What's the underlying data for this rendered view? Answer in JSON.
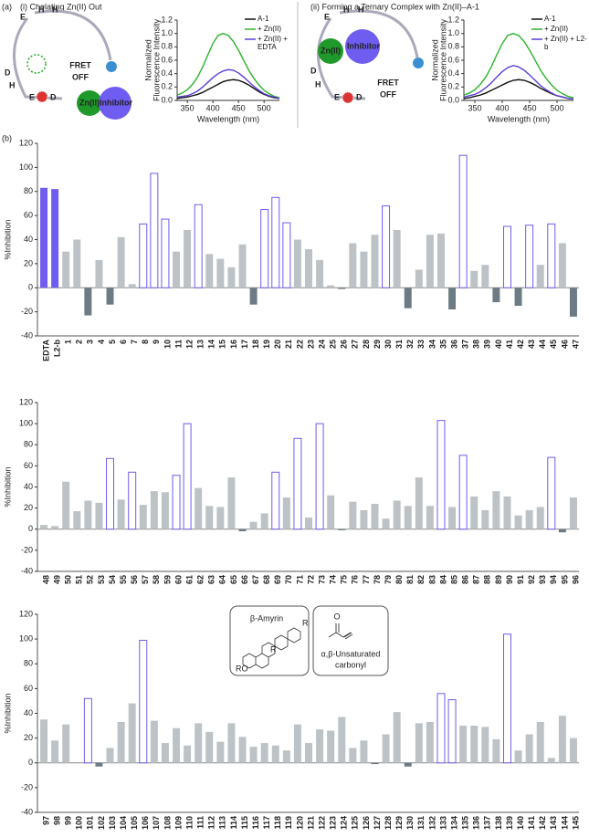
{
  "panel_a": {
    "label": "(a)",
    "i": {
      "title": "(i) Chelating Zn(II) Out",
      "residues": [
        "E",
        "H",
        "H",
        "D",
        "H",
        "E",
        "D"
      ],
      "fret": [
        "FRET",
        "OFF"
      ],
      "zn": "Zn(II)",
      "inhibitor": "Inhibitor"
    },
    "ii": {
      "title": "(ii) Forming a Ternary Complex with Zn(II)–A-1",
      "residues": [
        "E",
        "H",
        "H",
        "D",
        "H",
        "E",
        "D"
      ],
      "fret": [
        "FRET",
        "OFF"
      ],
      "zn": "Zn(II)",
      "inhibitor": "Inhibitor"
    }
  },
  "panel_b": {
    "label": "(b)"
  },
  "chart_data": [
    {
      "type": "line",
      "xlabel": "Wavelength (nm)",
      "ylabel": [
        "Normalized",
        "Fluorescence Intensity"
      ],
      "x": [
        330,
        340,
        350,
        360,
        370,
        380,
        390,
        400,
        410,
        420,
        430,
        440,
        450,
        460,
        470,
        480,
        490,
        500,
        510,
        520,
        530
      ],
      "xlim": [
        330,
        530
      ],
      "xticks": [
        350,
        400,
        450,
        500
      ],
      "ylim": [
        0,
        1.2
      ],
      "yticks": [
        {
          "value": 0,
          "label": "0.0"
        },
        0.2,
        0.4,
        0.6,
        0.8,
        {
          "value": 1,
          "label": "1.0"
        },
        1.2
      ],
      "series": [
        {
          "name": "A-1",
          "color": "#111111",
          "values": [
            0.03,
            0.04,
            0.05,
            0.07,
            0.09,
            0.12,
            0.16,
            0.2,
            0.24,
            0.28,
            0.3,
            0.31,
            0.3,
            0.27,
            0.23,
            0.18,
            0.13,
            0.09,
            0.06,
            0.04,
            0.03
          ]
        },
        {
          "name": "+ Zn(II)",
          "color": "#2db42d",
          "values": [
            0.08,
            0.11,
            0.16,
            0.24,
            0.35,
            0.5,
            0.68,
            0.85,
            0.97,
            1.0,
            0.97,
            0.88,
            0.75,
            0.6,
            0.45,
            0.33,
            0.23,
            0.15,
            0.1,
            0.06,
            0.04
          ]
        },
        {
          "name": "+ Zn(II) + EDTA",
          "color": "#5b3fd6",
          "values": [
            0.05,
            0.06,
            0.07,
            0.1,
            0.14,
            0.2,
            0.27,
            0.34,
            0.4,
            0.44,
            0.46,
            0.45,
            0.41,
            0.35,
            0.28,
            0.21,
            0.15,
            0.1,
            0.07,
            0.05,
            0.03
          ]
        }
      ]
    },
    {
      "type": "line",
      "xlabel": "Wavelength (nm)",
      "ylabel": [
        "Normalized",
        "Fluorescence Intensity"
      ],
      "x": [
        330,
        340,
        350,
        360,
        370,
        380,
        390,
        400,
        410,
        420,
        430,
        440,
        450,
        460,
        470,
        480,
        490,
        500,
        510,
        520,
        530
      ],
      "xlim": [
        330,
        530
      ],
      "xticks": [
        350,
        400,
        450,
        500
      ],
      "ylim": [
        0,
        1.2
      ],
      "yticks": [
        {
          "value": 0,
          "label": "0.0"
        },
        0.2,
        0.4,
        0.6,
        0.8,
        {
          "value": 1,
          "label": "1.0"
        },
        1.2
      ],
      "series": [
        {
          "name": "A-1",
          "color": "#111111",
          "values": [
            0.03,
            0.04,
            0.06,
            0.08,
            0.11,
            0.15,
            0.19,
            0.23,
            0.27,
            0.3,
            0.31,
            0.3,
            0.27,
            0.23,
            0.18,
            0.14,
            0.1,
            0.07,
            0.05,
            0.03,
            0.02
          ]
        },
        {
          "name": "+ Zn(II)",
          "color": "#2db42d",
          "values": [
            0.08,
            0.11,
            0.16,
            0.24,
            0.35,
            0.5,
            0.68,
            0.85,
            0.97,
            1.0,
            0.97,
            0.88,
            0.75,
            0.6,
            0.45,
            0.33,
            0.23,
            0.15,
            0.1,
            0.06,
            0.04
          ]
        },
        {
          "name": "+ Zn(II) + L2-b",
          "color": "#5b3fd6",
          "values": [
            0.05,
            0.07,
            0.09,
            0.13,
            0.19,
            0.26,
            0.35,
            0.43,
            0.49,
            0.52,
            0.5,
            0.45,
            0.38,
            0.3,
            0.22,
            0.16,
            0.11,
            0.07,
            0.05,
            0.03,
            0.02
          ]
        }
      ]
    },
    {
      "type": "bar",
      "ylabel": "%Inhibition",
      "ylim": [
        -40,
        120
      ],
      "yticks": [
        -40,
        -20,
        0,
        20,
        40,
        60,
        80,
        100,
        120
      ],
      "style_colors": {
        "solid": "#6f5cf0",
        "outline": "#6f5cf0",
        "plain": "#bcc2c5"
      },
      "negative_color": "#6d7c84",
      "categories": [
        "EDTA",
        "L2-b",
        "1",
        "2",
        "3",
        "4",
        "5",
        "6",
        "7",
        "8",
        "9",
        "10",
        "11",
        "12",
        "13",
        "14",
        "15",
        "16",
        "17",
        "18",
        "19",
        "20",
        "21",
        "22",
        "23",
        "24",
        "25",
        "26",
        "27",
        "28",
        "29",
        "30",
        "31",
        "32",
        "33",
        "34",
        "35",
        "36",
        "37",
        "38",
        "39",
        "40",
        "41",
        "42",
        "43",
        "44",
        "45",
        "46",
        "47"
      ],
      "values": [
        83,
        82,
        30,
        40,
        -23,
        23,
        -14,
        42,
        3,
        53,
        95,
        57,
        30,
        48,
        69,
        28,
        24,
        17,
        36,
        -14,
        65,
        75,
        54,
        40,
        32,
        23,
        2,
        -1,
        37,
        30,
        44,
        68,
        48,
        -17,
        15,
        44,
        45,
        -18,
        110,
        14,
        19,
        -12,
        51,
        -15,
        52,
        19,
        53,
        37,
        -24
      ],
      "bar_styles": [
        "solid",
        "solid",
        "plain",
        "plain",
        "plain",
        "plain",
        "plain",
        "plain",
        "plain",
        "outline",
        "outline",
        "outline",
        "plain",
        "plain",
        "outline",
        "plain",
        "plain",
        "plain",
        "plain",
        "plain",
        "outline",
        "outline",
        "outline",
        "plain",
        "plain",
        "plain",
        "plain",
        "plain",
        "plain",
        "plain",
        "plain",
        "outline",
        "plain",
        "plain",
        "plain",
        "plain",
        "plain",
        "plain",
        "outline",
        "plain",
        "plain",
        "plain",
        "outline",
        "plain",
        "outline",
        "plain",
        "outline",
        "plain",
        "plain"
      ]
    },
    {
      "type": "bar",
      "ylabel": "%Inhibition",
      "ylim": [
        -40,
        120
      ],
      "yticks": [
        -40,
        -20,
        0,
        20,
        40,
        60,
        80,
        100,
        120
      ],
      "style_colors": {
        "solid": "#6f5cf0",
        "outline": "#6f5cf0",
        "plain": "#bcc2c5"
      },
      "negative_color": "#6d7c84",
      "highlight_color": "#2a86b4",
      "categories": [
        "48",
        "49",
        "50",
        "51",
        "52",
        "53",
        "54",
        "55",
        "56",
        "57",
        "58",
        "59",
        "60",
        "61",
        "62",
        "63",
        "64",
        "65",
        "66",
        "67",
        "68",
        "69",
        "70",
        "71",
        "72",
        "73",
        "74",
        "75",
        "76",
        "77",
        "78",
        "79",
        "80",
        "81",
        "82",
        "83",
        "84",
        "85",
        "86",
        "87",
        "88",
        "89",
        "90",
        "91",
        "92",
        "93",
        "94",
        "95",
        "96"
      ],
      "values": [
        4,
        3,
        45,
        17,
        27,
        25,
        67,
        28,
        54,
        23,
        36,
        35,
        51,
        100,
        39,
        22,
        21,
        49,
        -2,
        7,
        15,
        54,
        30,
        86,
        11,
        100,
        32,
        -1,
        26,
        18,
        24,
        10,
        27,
        22,
        49,
        22,
        103,
        21,
        70,
        31,
        18,
        36,
        31,
        13,
        18,
        21,
        68,
        -3,
        30
      ],
      "bar_styles": [
        "plain",
        "plain",
        "plain",
        "plain",
        "plain",
        "plain",
        "outline",
        "plain",
        "outline",
        "plain",
        "plain",
        "plain",
        "outline",
        "outline",
        "plain",
        "plain",
        "plain",
        "plain",
        "plain",
        "plain",
        "plain",
        "outline",
        "plain",
        "outline",
        "plain",
        "outline",
        "plain",
        "plain",
        "plain",
        "plain",
        "plain",
        "plain",
        "plain",
        "plain",
        "plain",
        "plain",
        "outline",
        "plain",
        "outline",
        "plain",
        "plain",
        "plain",
        "plain",
        "plain",
        "plain",
        "plain",
        "outline",
        "plain",
        "plain"
      ],
      "highlighted": [
        false,
        false,
        false,
        false,
        false,
        false,
        false,
        false,
        false,
        false,
        false,
        false,
        false,
        true,
        false,
        false,
        false,
        false,
        false,
        false,
        false,
        false,
        false,
        true,
        false,
        false,
        false,
        false,
        false,
        false,
        false,
        false,
        false,
        false,
        false,
        false,
        true,
        false,
        false,
        false,
        false,
        false,
        false,
        false,
        false,
        false,
        false,
        false,
        false
      ]
    },
    {
      "type": "bar",
      "ylabel": "%Inhibition",
      "ylim": [
        -40,
        120
      ],
      "yticks": [
        -40,
        -20,
        0,
        20,
        40,
        60,
        80,
        100,
        120
      ],
      "style_colors": {
        "solid": "#6f5cf0",
        "outline": "#6f5cf0",
        "plain": "#bcc2c5"
      },
      "negative_color": "#6d7c84",
      "annotations": {
        "amyrin": "β-Amyrin",
        "amyrin_ro": "RO",
        "amyrin_r": [
          "R",
          "R"
        ],
        "carbonyl": [
          "α,β-Unsaturated",
          "carbonyl"
        ],
        "carbonyl_o": "O"
      },
      "categories": [
        "97",
        "98",
        "99",
        "100",
        "101",
        "102",
        "103",
        "104",
        "105",
        "106",
        "107",
        "108",
        "109",
        "110",
        "111",
        "112",
        "113",
        "114",
        "115",
        "116",
        "117",
        "118",
        "119",
        "120",
        "121",
        "122",
        "123",
        "124",
        "125",
        "126",
        "127",
        "128",
        "129",
        "130",
        "131",
        "132",
        "133",
        "134",
        "135",
        "136",
        "137",
        "138",
        "139",
        "140",
        "141",
        "142",
        "143",
        "144",
        "145"
      ],
      "values": [
        35,
        18,
        31,
        0,
        52,
        -3,
        12,
        33,
        48,
        99,
        34,
        16,
        28,
        14,
        32,
        25,
        17,
        32,
        21,
        13,
        16,
        14,
        10,
        31,
        16,
        27,
        26,
        37,
        12,
        18,
        -1,
        23,
        41,
        -3,
        32,
        33,
        56,
        51,
        30,
        30,
        29,
        19,
        104,
        10,
        23,
        33,
        4,
        38,
        20
      ],
      "bar_styles": [
        "plain",
        "plain",
        "plain",
        "plain",
        "outline",
        "plain",
        "plain",
        "plain",
        "plain",
        "outline",
        "plain",
        "plain",
        "plain",
        "plain",
        "plain",
        "plain",
        "plain",
        "plain",
        "plain",
        "plain",
        "plain",
        "plain",
        "plain",
        "plain",
        "plain",
        "plain",
        "plain",
        "plain",
        "plain",
        "plain",
        "plain",
        "plain",
        "plain",
        "plain",
        "plain",
        "plain",
        "outline",
        "outline",
        "plain",
        "plain",
        "plain",
        "plain",
        "outline",
        "plain",
        "plain",
        "plain",
        "plain",
        "plain",
        "plain"
      ]
    }
  ]
}
